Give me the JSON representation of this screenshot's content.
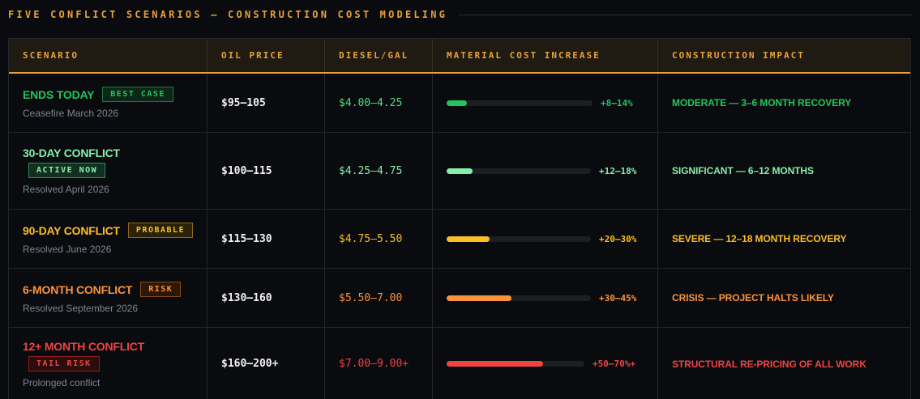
{
  "heading": "FIVE CONFLICT SCENARIOS — CONSTRUCTION COST MODELING",
  "columns": [
    "SCENARIO",
    "OIL PRICE",
    "DIESEL/GAL",
    "MATERIAL COST INCREASE",
    "CONSTRUCTION IMPACT"
  ],
  "rows": [
    {
      "name": "ENDS TODAY",
      "badge": "BEST CASE",
      "subtitle": "Ceasefire March 2026",
      "oil": "$95–105",
      "diesel": "$4.00–4.25",
      "increase": "+8–14%",
      "bar_fill": 0.14,
      "impact": "MODERATE — 3–6 MONTH RECOVERY",
      "color": "#22c55e",
      "badge_bg": "#0d2616",
      "badge_border": "#1e7a3e",
      "badge_color": "#22c55e",
      "diesel_color": "#4ade80",
      "layout": "inline"
    },
    {
      "name": "30-DAY CONFLICT",
      "badge": "ACTIVE NOW",
      "subtitle": "Resolved April 2026",
      "oil": "$100–115",
      "diesel": "$4.25–4.75",
      "increase": "+12–18%",
      "bar_fill": 0.18,
      "impact": "SIGNIFICANT — 6–12 MONTHS",
      "color": "#86efac",
      "badge_bg": "#123021",
      "badge_border": "#2f8a55",
      "badge_color": "#86efac",
      "diesel_color": "#86efac",
      "layout": "stacked"
    },
    {
      "name": "90-DAY CONFLICT",
      "badge": "PROBABLE",
      "subtitle": "Resolved June 2026",
      "oil": "$115–130",
      "diesel": "$4.75–5.50",
      "increase": "+20–30%",
      "bar_fill": 0.3,
      "impact": "SEVERE — 12–18 MONTH RECOVERY",
      "color": "#fbbf24",
      "badge_bg": "#2a2108",
      "badge_border": "#8a6a14",
      "badge_color": "#fbbf24",
      "diesel_color": "#fbbf24",
      "layout": "inline"
    },
    {
      "name": "6-MONTH CONFLICT",
      "badge": "RISK",
      "subtitle": "Resolved September 2026",
      "oil": "$130–160",
      "diesel": "$5.50–7.00",
      "increase": "+30–45%",
      "bar_fill": 0.45,
      "impact": "CRISIS — PROJECT HALTS LIKELY",
      "color": "#fb923c",
      "badge_bg": "#2b1808",
      "badge_border": "#8a4a18",
      "badge_color": "#fb923c",
      "diesel_color": "#fb923c",
      "layout": "inline"
    },
    {
      "name": "12+ MONTH CONFLICT",
      "badge": "TAIL RISK",
      "subtitle": "Prolonged conflict",
      "oil": "$160–200+",
      "diesel": "$7.00–9.00+",
      "increase": "+50–70%+",
      "bar_fill": 0.7,
      "impact": "STRUCTURAL RE-PRICING OF ALL WORK",
      "color": "#ef4444",
      "badge_bg": "#2b0d0d",
      "badge_border": "#8a2020",
      "badge_color": "#ef4444",
      "diesel_color": "#ef4444",
      "layout": "stacked"
    }
  ]
}
